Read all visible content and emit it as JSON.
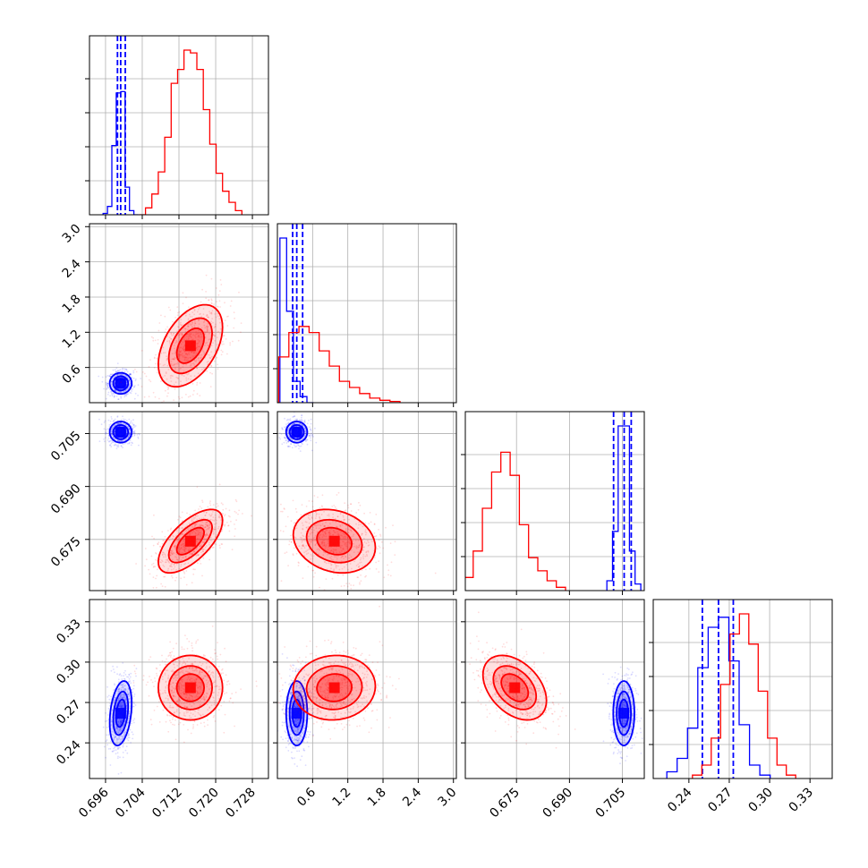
{
  "chart_data": {
    "type": "corner",
    "parameters": [
      {
        "ticks": [
          "0.696",
          "0.704",
          "0.712",
          "0.720",
          "0.728"
        ],
        "tick_values": [
          0.696,
          0.704,
          0.712,
          0.72,
          0.728
        ],
        "range": [
          0.6925,
          0.7315
        ]
      },
      {
        "ticks": [
          "0.6",
          "1.2",
          "1.8",
          "2.4",
          "3.0"
        ],
        "tick_values": [
          0.6,
          1.2,
          1.8,
          2.4,
          3.0
        ],
        "range": [
          0.0,
          3.05
        ]
      },
      {
        "ticks": [
          "0.675",
          "0.690",
          "0.705"
        ],
        "tick_values": [
          0.675,
          0.69,
          0.705
        ],
        "range": [
          0.6605,
          0.7112
        ]
      },
      {
        "ticks": [
          "0.24",
          "0.27",
          "0.30",
          "0.33"
        ],
        "tick_values": [
          0.24,
          0.27,
          0.3,
          0.33
        ],
        "range": [
          0.2135,
          0.3465
        ]
      }
    ],
    "grid": true,
    "series": [
      {
        "color": "#0000ff",
        "mean": [
          0.6993,
          0.33,
          0.7054,
          0.262
        ],
        "sd": [
          0.0012,
          0.09,
          0.0015,
          0.012
        ],
        "correlations": {
          "0-1": 0.0,
          "0-2": 0.0,
          "1-2": 0.0,
          "0-3": 0.3,
          "1-3": 0.0,
          "2-3": 0.0
        },
        "quantiles": [
          [
            0.6986,
            0.6993,
            0.7003
          ],
          [
            0.26,
            0.33,
            0.43
          ],
          [
            0.7025,
            0.7055,
            0.7075
          ],
          [
            0.25,
            0.262,
            0.273
          ]
        ],
        "hist1d": [
          [
            0.1,
            0.6,
            5.0,
            8.8,
            8.9,
            2.0,
            0.3,
            0.0
          ],
          [
            5.4,
            3.0,
            0.7,
            0.2,
            0.0
          ],
          [
            0.3,
            1.8,
            5.0,
            5.0,
            1.2,
            0.2
          ],
          [
            0.2,
            0.6,
            1.5,
            3.3,
            4.5,
            4.8,
            3.5,
            1.6,
            0.4,
            0.1
          ]
        ]
      },
      {
        "color": "#ff0000",
        "mean": [
          0.7145,
          0.97,
          0.6745,
          0.281
        ],
        "sd": [
          0.0035,
          0.35,
          0.0045,
          0.012
        ],
        "correlations": {
          "0-1": 0.45,
          "0-2": 0.65,
          "1-2": -0.2,
          "0-3": 0.0,
          "1-3": 0.05,
          "2-3": -0.4
        },
        "quantiles": [
          [
            0.7105,
            0.7145,
            0.7185
          ],
          [
            0.62,
            0.97,
            1.38
          ],
          [
            0.6695,
            0.6745,
            0.6795
          ],
          [
            0.268,
            0.281,
            0.294
          ]
        ],
        "hist1d": [
          [
            0.0,
            0.5,
            1.5,
            3.1,
            5.6,
            9.5,
            10.5,
            11.9,
            11.7,
            10.5,
            7.6,
            5.1,
            3.0,
            1.7,
            0.9,
            0.3
          ],
          [
            0.0,
            1.5,
            2.3,
            2.5,
            2.3,
            1.7,
            1.2,
            0.7,
            0.5,
            0.3,
            0.15,
            0.08,
            0.04
          ],
          [
            0.4,
            1.2,
            2.5,
            3.6,
            4.2,
            3.5,
            2.0,
            1.0,
            0.6,
            0.3,
            0.1
          ],
          [
            0.1,
            0.4,
            1.2,
            2.8,
            4.3,
            4.9,
            4.0,
            2.6,
            1.2,
            0.4,
            0.1
          ]
        ]
      }
    ]
  }
}
